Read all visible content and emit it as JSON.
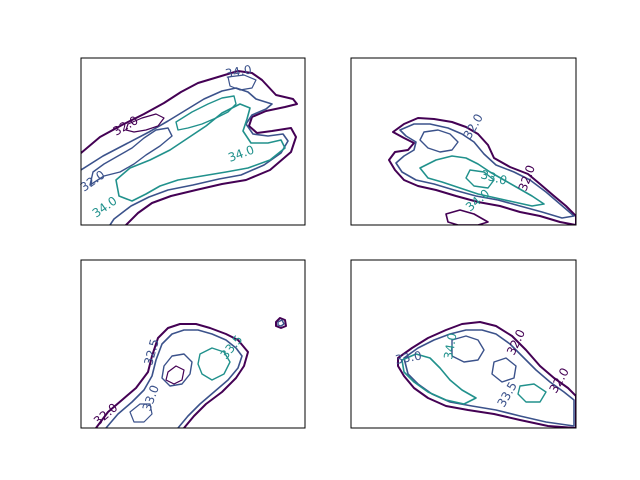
{
  "colors": {
    "level_1": "#440154",
    "level_2": "#3b528b",
    "level_3": "#21918c",
    "axes_frame": "#000000",
    "background": "#ffffff"
  },
  "chart_data": [
    {
      "type": "contour",
      "panel": "top-left",
      "title": "",
      "xlabel": "",
      "ylabel": "",
      "ticks": "none",
      "contour_labels": [
        "32.0",
        "32.0",
        "34.0",
        "34.0",
        "34.0"
      ]
    },
    {
      "type": "contour",
      "panel": "top-right",
      "title": "",
      "xlabel": "",
      "ylabel": "",
      "ticks": "none",
      "contour_labels": [
        "32.0",
        "32.0",
        "33.0",
        "34.0"
      ]
    },
    {
      "type": "contour",
      "panel": "bottom-left",
      "title": "",
      "xlabel": "",
      "ylabel": "",
      "ticks": "none",
      "contour_labels": [
        "32.0",
        "32.5",
        "33.0",
        "33.5"
      ]
    },
    {
      "type": "contour",
      "panel": "bottom-right",
      "title": "",
      "xlabel": "",
      "ylabel": "",
      "ticks": "none",
      "contour_labels": [
        "32.0",
        "32.0",
        "33.0",
        "34.0",
        "33.5"
      ]
    }
  ]
}
